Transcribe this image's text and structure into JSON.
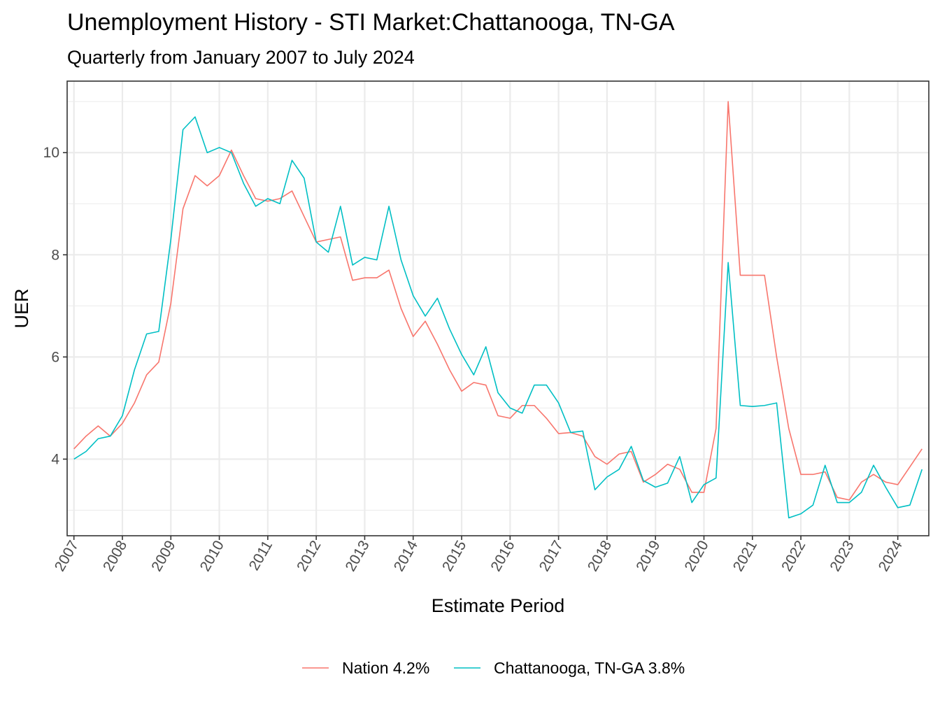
{
  "chart_data": {
    "type": "line",
    "title": "Unemployment History - STI Market:Chattanooga, TN-GA",
    "subtitle": "Quarterly from January 2007 to July 2024",
    "xlabel": "Estimate Period",
    "ylabel": "UER",
    "x_ticks": [
      "2007",
      "2008",
      "2009",
      "2010",
      "2011",
      "2012",
      "2013",
      "2014",
      "2015",
      "2016",
      "2017",
      "2018",
      "2019",
      "2020",
      "2021",
      "2022",
      "2023",
      "2024"
    ],
    "y_ticks": [
      4,
      6,
      8,
      10
    ],
    "y_tick_labels": [
      "4",
      "6",
      "8",
      "10"
    ],
    "xlim": [
      "2007-01-01",
      "2024-07-01"
    ],
    "ylim": [
      2.5,
      11.4
    ],
    "grid": true,
    "legend_position": "bottom",
    "x": [
      "2007-01-01",
      "2007-04-01",
      "2007-07-01",
      "2007-10-01",
      "2008-01-01",
      "2008-04-01",
      "2008-07-01",
      "2008-10-01",
      "2009-01-01",
      "2009-04-01",
      "2009-07-01",
      "2009-10-01",
      "2010-01-01",
      "2010-04-01",
      "2010-07-01",
      "2010-10-01",
      "2011-01-01",
      "2011-04-01",
      "2011-07-01",
      "2011-10-01",
      "2012-01-01",
      "2012-04-01",
      "2012-07-01",
      "2012-10-01",
      "2013-01-01",
      "2013-04-01",
      "2013-07-01",
      "2013-10-01",
      "2014-01-01",
      "2014-04-01",
      "2014-07-01",
      "2014-10-01",
      "2015-01-01",
      "2015-04-01",
      "2015-07-01",
      "2015-10-01",
      "2016-01-01",
      "2016-04-01",
      "2016-07-01",
      "2016-10-01",
      "2017-01-01",
      "2017-04-01",
      "2017-07-01",
      "2017-10-01",
      "2018-01-01",
      "2018-04-01",
      "2018-07-01",
      "2018-10-01",
      "2019-01-01",
      "2019-04-01",
      "2019-07-01",
      "2019-10-01",
      "2020-01-01",
      "2020-04-01",
      "2020-07-01",
      "2020-10-01",
      "2021-01-01",
      "2021-04-01",
      "2021-07-01",
      "2021-10-01",
      "2022-01-01",
      "2022-04-01",
      "2022-07-01",
      "2022-10-01",
      "2023-01-01",
      "2023-04-01",
      "2023-07-01",
      "2023-10-01",
      "2024-01-01",
      "2024-04-01",
      "2024-07-01"
    ],
    "series": [
      {
        "name": "Nation 4.2%",
        "color": "#f8766d",
        "values": [
          4.2,
          4.45,
          4.65,
          4.45,
          4.7,
          5.1,
          5.65,
          5.9,
          7.05,
          8.9,
          9.55,
          9.35,
          9.55,
          10.05,
          9.55,
          9.1,
          9.05,
          9.1,
          9.25,
          8.75,
          8.25,
          8.3,
          8.35,
          7.5,
          7.55,
          7.55,
          7.7,
          6.95,
          6.4,
          6.7,
          6.25,
          5.75,
          5.33,
          5.5,
          5.45,
          4.85,
          4.8,
          5.05,
          5.05,
          4.8,
          4.5,
          4.52,
          4.45,
          4.05,
          3.9,
          4.1,
          4.15,
          3.55,
          3.7,
          3.9,
          3.8,
          3.35,
          3.35,
          4.6,
          11.0,
          7.6,
          7.6,
          7.6,
          6.0,
          4.6,
          3.7,
          3.7,
          3.75,
          3.25,
          3.2,
          3.55,
          3.7,
          3.55,
          3.5,
          3.85,
          4.2
        ]
      },
      {
        "name": "Chattanooga, TN-GA 3.8%",
        "color": "#00bfc4",
        "values": [
          4.0,
          4.15,
          4.4,
          4.45,
          4.85,
          5.75,
          6.45,
          6.5,
          8.3,
          10.45,
          10.7,
          10.0,
          10.1,
          10.0,
          9.4,
          8.95,
          9.1,
          9.0,
          9.85,
          9.5,
          8.25,
          8.05,
          8.95,
          7.8,
          7.95,
          7.9,
          8.95,
          7.9,
          7.2,
          6.8,
          7.15,
          6.55,
          6.05,
          5.65,
          6.2,
          5.3,
          5.0,
          4.9,
          5.45,
          5.45,
          5.1,
          4.52,
          4.55,
          3.4,
          3.65,
          3.8,
          4.25,
          3.58,
          3.45,
          3.53,
          4.05,
          3.15,
          3.5,
          3.63,
          7.85,
          5.05,
          5.03,
          5.05,
          5.1,
          2.85,
          2.93,
          3.1,
          3.88,
          3.15,
          3.15,
          3.35,
          3.88,
          3.45,
          3.05,
          3.1,
          3.8
        ]
      }
    ]
  }
}
